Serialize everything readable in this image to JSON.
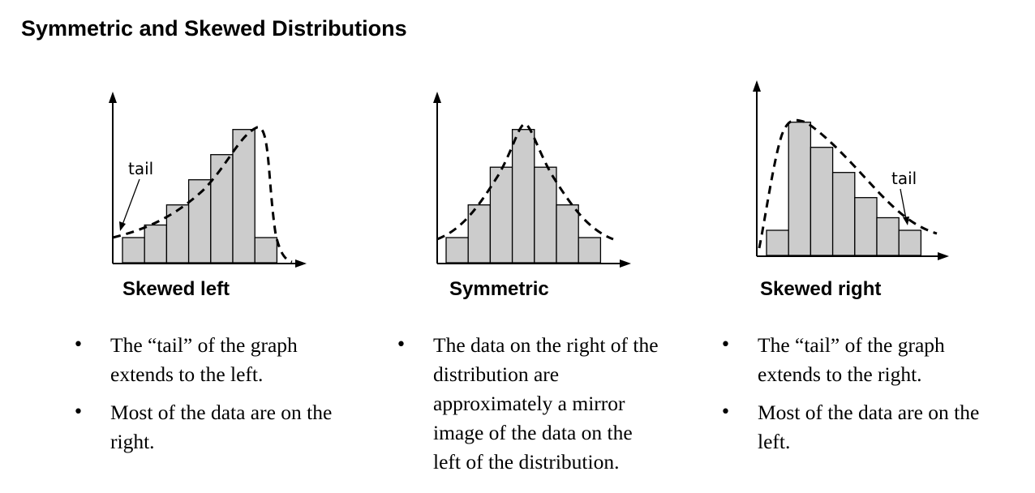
{
  "title": "Symmetric and Skewed Distributions",
  "panels": [
    {
      "id": "skewed-left",
      "label": "Skewed left",
      "annotation": "tail",
      "bars": [
        2,
        3,
        4.6,
        6.6,
        8.6,
        10.6,
        2
      ],
      "bullets": [
        "The “tail” of the graph extends to the left.",
        "Most of the data are on the right."
      ]
    },
    {
      "id": "symmetric",
      "label": "Symmetric",
      "annotation": "",
      "bars": [
        2,
        4.6,
        7.6,
        10.6,
        7.6,
        4.6,
        2
      ],
      "bullets": [
        "The data on the right of the distribution are approximately a mirror image of the data on the left of the distribution."
      ]
    },
    {
      "id": "skewed-right",
      "label": "Skewed right",
      "annotation": "tail",
      "bars": [
        2,
        10.6,
        8.6,
        6.6,
        4.6,
        3,
        2
      ],
      "bullets": [
        "The “tail” of the graph extends to the right.",
        "Most of the data are on the left."
      ]
    }
  ],
  "colors": {
    "bar_fill": "#cccccc",
    "stroke": "#000000"
  }
}
